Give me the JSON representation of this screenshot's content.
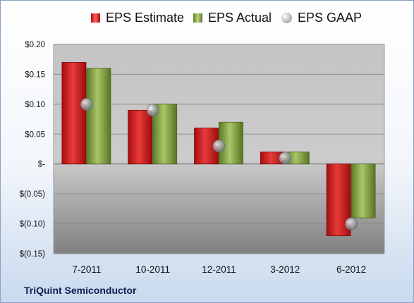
{
  "legend": {
    "estimate": "EPS Estimate",
    "actual": "EPS Actual",
    "gaap": "EPS GAAP"
  },
  "company": "TriQuint Semiconductor",
  "colors": {
    "estimate": "#c81818",
    "actual": "#8cab4a",
    "gaap": "#a8adb5",
    "panel": "#c8c8c8"
  },
  "chart_data": {
    "type": "bar",
    "categories": [
      "7-2011",
      "10-2011",
      "12-2011",
      "3-2012",
      "6-2012"
    ],
    "series": [
      {
        "name": "EPS Estimate",
        "values": [
          0.17,
          0.09,
          0.06,
          0.02,
          -0.12
        ]
      },
      {
        "name": "EPS Actual",
        "values": [
          0.16,
          0.1,
          0.07,
          0.02,
          -0.09
        ]
      },
      {
        "name": "EPS GAAP",
        "values": [
          0.1,
          0.09,
          0.03,
          0.01,
          -0.1
        ],
        "style": "marker"
      }
    ],
    "ylim": [
      -0.15,
      0.2
    ],
    "yticks": [
      0.2,
      0.15,
      0.1,
      0.05,
      0,
      -0.05,
      -0.1,
      -0.15
    ],
    "ytick_labels": [
      "$0.20",
      "$0.15",
      "$0.10",
      "$0.05",
      "$-",
      "$(0.05)",
      "$(0.10)",
      "$(0.15)"
    ],
    "grid": true,
    "legend_position": "top"
  }
}
